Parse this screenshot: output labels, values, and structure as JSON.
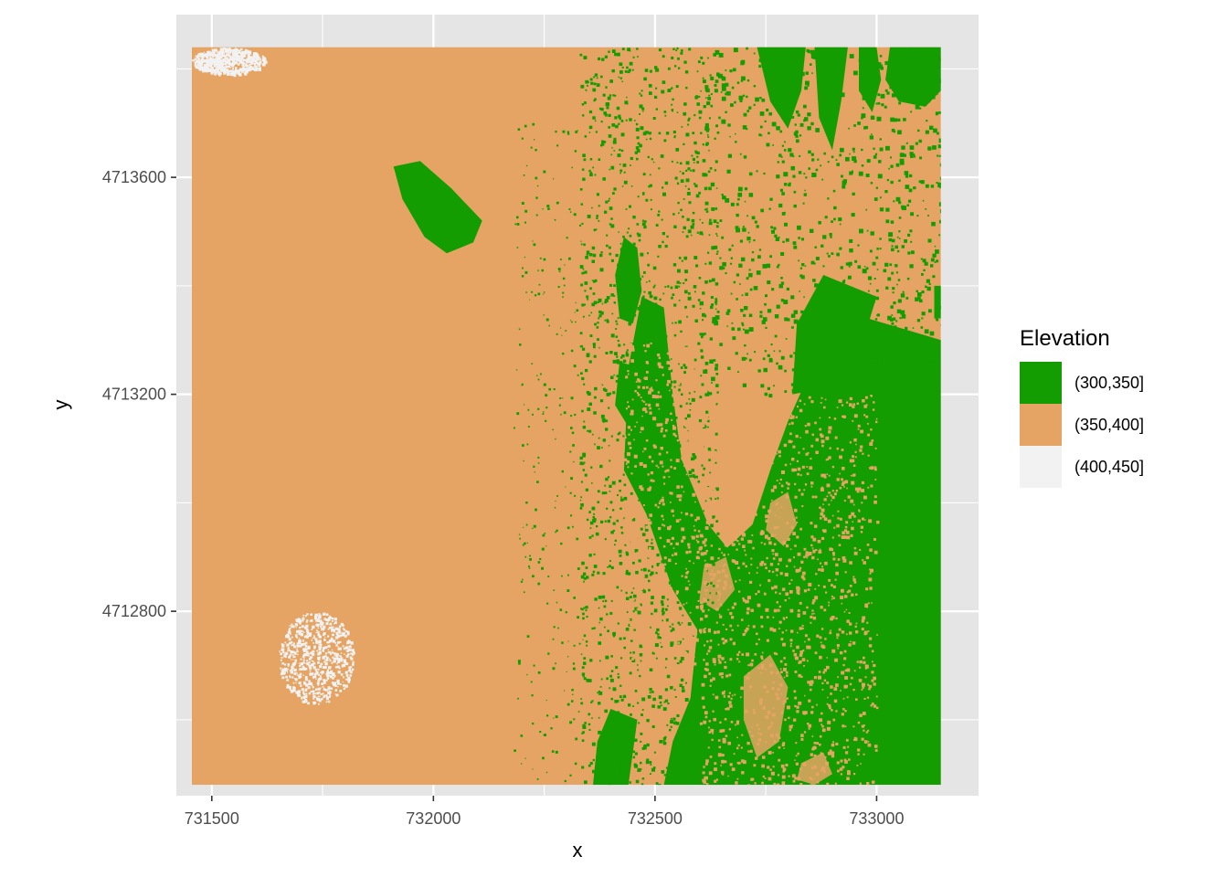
{
  "chart_data": {
    "type": "heatmap",
    "title": "",
    "xlabel": "x",
    "ylabel": "y",
    "xlim": [
      731420,
      733230
    ],
    "ylim": [
      4712460,
      4713900
    ],
    "raster_extent": {
      "x": [
        731455,
        733145
      ],
      "y": [
        4712480,
        4713840
      ]
    },
    "x_ticks": [
      731500,
      732000,
      732500,
      733000
    ],
    "x_tick_labels": [
      "731500",
      "732000",
      "732500",
      "733000"
    ],
    "y_ticks": [
      4712800,
      4713200,
      4713600
    ],
    "y_tick_labels": [
      "4712800",
      "4713200",
      "4713600"
    ],
    "grid": true,
    "panel_background": "#e5e5e5",
    "grid_color": "#ffffff",
    "legend": {
      "title": "Elevation",
      "placement": "right",
      "entries": [
        {
          "label": "(300,350]",
          "color": "#139d00"
        },
        {
          "label": "(350,400]",
          "color": "#e6a464"
        },
        {
          "label": "(400,450]",
          "color": "#f2f2f2"
        }
      ]
    },
    "regions": [
      {
        "class": "(300,350]",
        "description": "eastern lowland",
        "x_range": [
          732600,
          733145
        ],
        "y_range": [
          4712480,
          4713840
        ]
      },
      {
        "class": "(350,400]",
        "description": "western plateau",
        "x_range": [
          731455,
          732330
        ],
        "y_range": [
          4712480,
          4713840
        ]
      },
      {
        "class": "(400,450]",
        "description": "northwest corner",
        "x_range": [
          731455,
          731620
        ],
        "y_range": [
          4713790,
          4713840
        ]
      },
      {
        "class": "(400,450]",
        "description": "southwest patch",
        "x_range": [
          731650,
          731820
        ],
        "y_range": [
          4712630,
          4712800
        ]
      }
    ]
  }
}
